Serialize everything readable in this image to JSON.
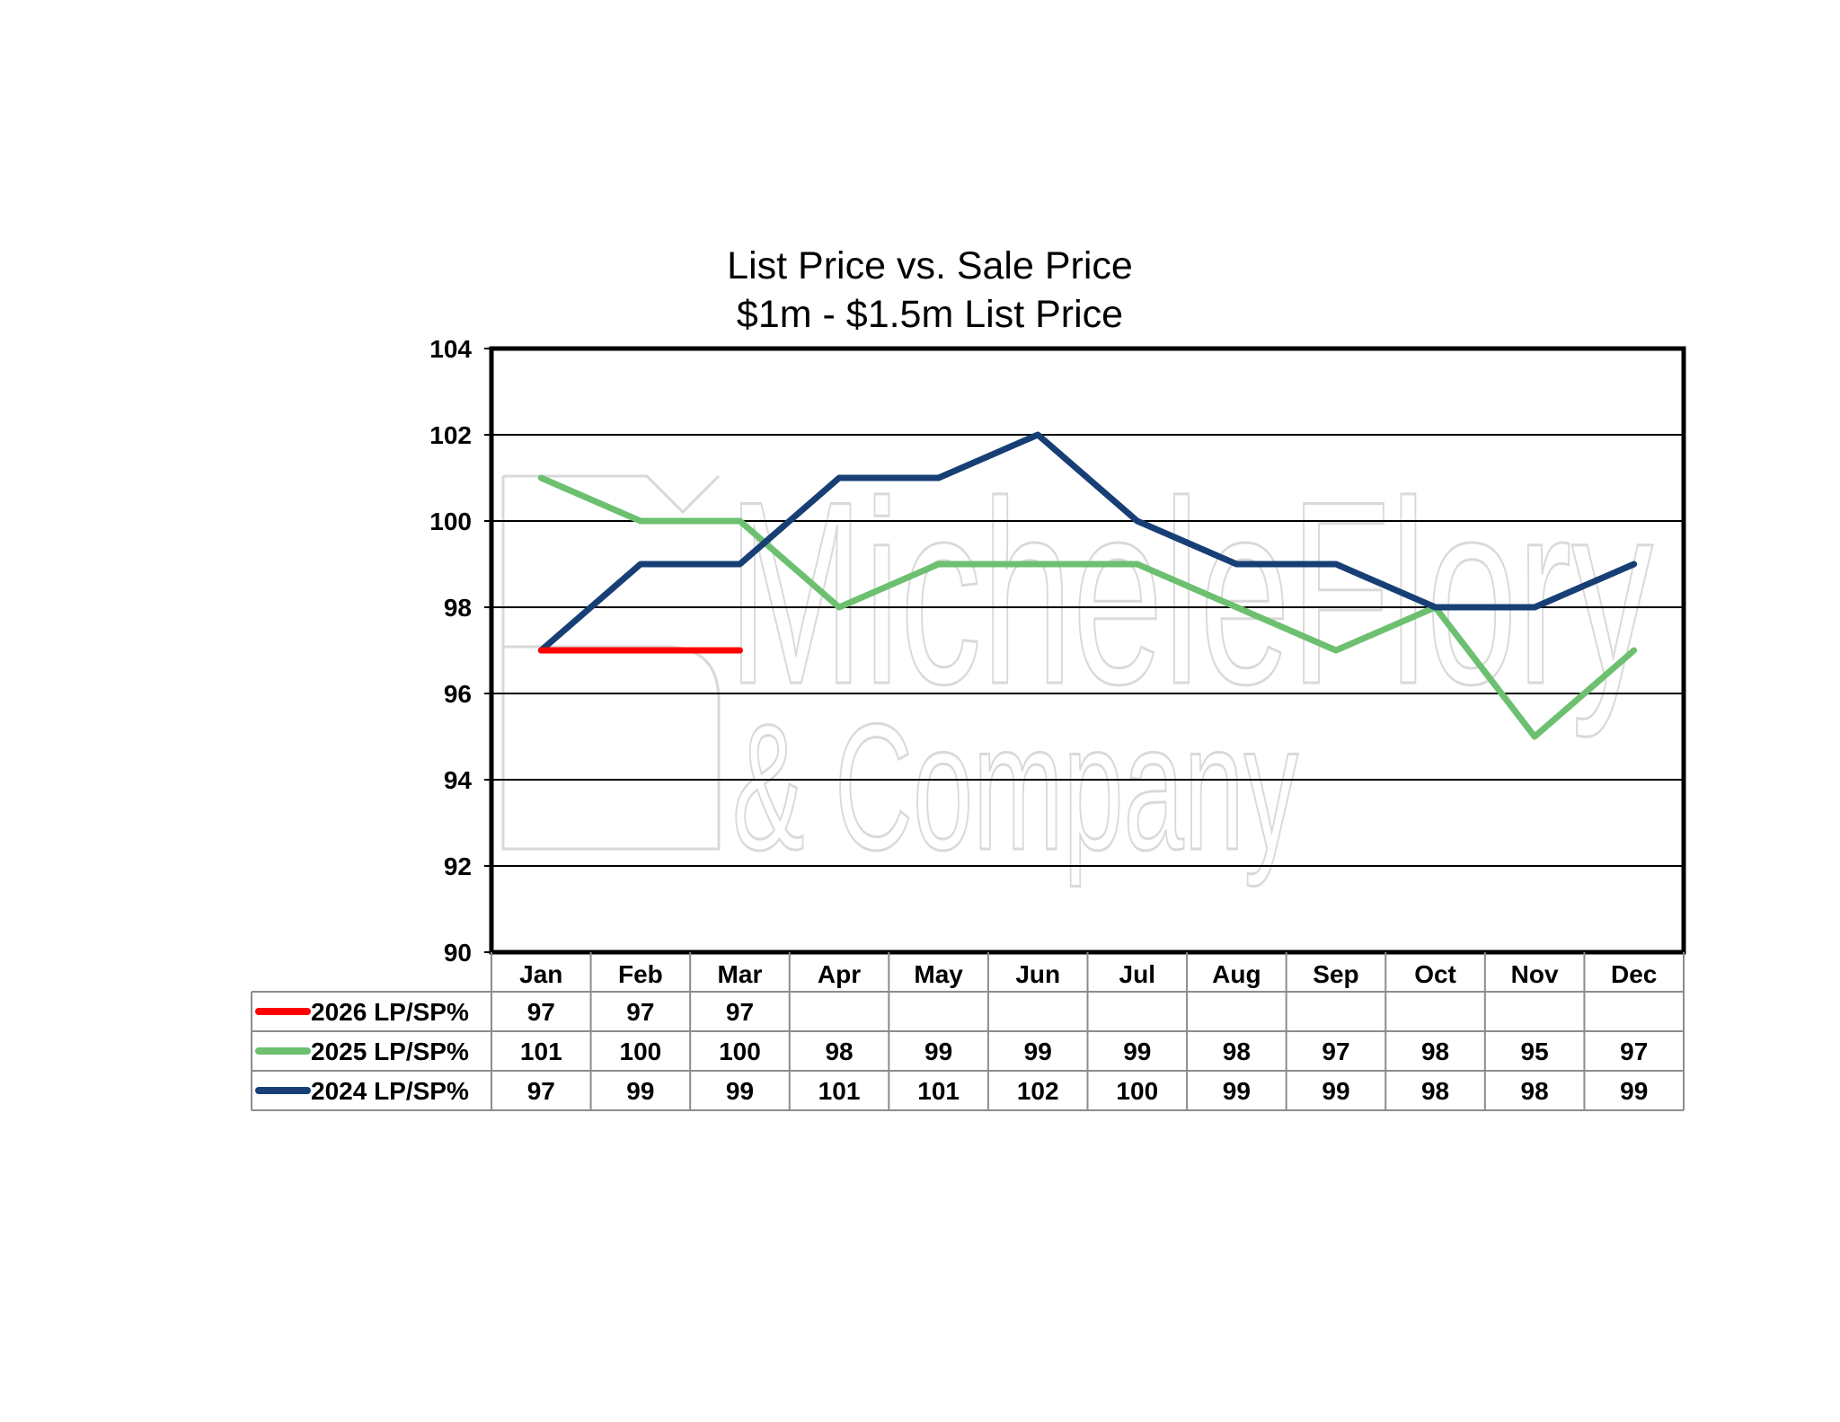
{
  "chart_data": {
    "type": "line",
    "title": "List Price vs. Sale Price",
    "subtitle": "$1m - $1.5m List Price",
    "xlabel": "",
    "ylabel": "",
    "categories": [
      "Jan",
      "Feb",
      "Mar",
      "Apr",
      "May",
      "Jun",
      "Jul",
      "Aug",
      "Sep",
      "Oct",
      "Nov",
      "Dec"
    ],
    "ylim": [
      90,
      104
    ],
    "yticks": [
      "90",
      "92",
      "94",
      "96",
      "98",
      "100",
      "102",
      "104"
    ],
    "grid": true,
    "legend": "data-table-left",
    "series": [
      {
        "name": "2026 LP/SP%",
        "color": "#ff0000",
        "values": [
          97,
          97,
          97,
          null,
          null,
          null,
          null,
          null,
          null,
          null,
          null,
          null
        ]
      },
      {
        "name": "2025 LP/SP%",
        "color": "#6cc070",
        "values": [
          101,
          100,
          100,
          98,
          99,
          99,
          99,
          98,
          97,
          98,
          95,
          97
        ]
      },
      {
        "name": "2024 LP/SP%",
        "color": "#173f75",
        "values": [
          97,
          99,
          99,
          101,
          101,
          102,
          100,
          99,
          99,
          98,
          98,
          99
        ]
      }
    ]
  },
  "watermark": {
    "line1": "MicheleFlory",
    "line2": "& Company"
  }
}
